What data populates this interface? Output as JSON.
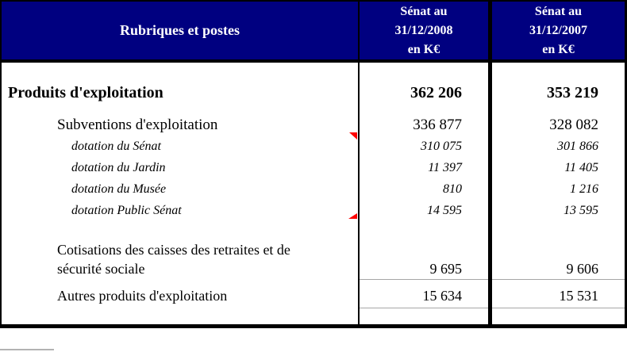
{
  "colors": {
    "header_bg": "#000080",
    "header_text": "#ffffff",
    "border_black": "#000000",
    "rule_gray": "#a6a6a6",
    "comment_marker_red": "#ff0000"
  },
  "header": {
    "rubriques": "Rubriques et postes",
    "col_2008": [
      "Sénat au",
      "31/12/2008",
      "en K€"
    ],
    "col_2007": [
      "Sénat au",
      "31/12/2007",
      "en K€"
    ]
  },
  "rows": {
    "produits": {
      "label": "Produits d'exploitation",
      "v2008": "362 206",
      "v2007": "353 219"
    },
    "subventions": {
      "label": "Subventions d'exploitation",
      "v2008": "336 877",
      "v2007": "328 082"
    },
    "dotations": [
      {
        "label": "dotation du Sénat",
        "v2008": "310 075",
        "v2007": "301 866"
      },
      {
        "label": "dotation du Jardin",
        "v2008": "11 397",
        "v2007": "11 405"
      },
      {
        "label": "dotation du Musée",
        "v2008": "810",
        "v2007": "1 216"
      },
      {
        "label": "dotation Public Sénat",
        "v2008": "14 595",
        "v2007": "13 595"
      }
    ],
    "cotisations": {
      "label_line1": "Cotisations des caisses des retraites et de",
      "label_line2": "sécurité sociale",
      "v2008": "9 695",
      "v2007": "9 606"
    },
    "autres": {
      "label": "Autres produits d'exploitation",
      "v2008": "15 634",
      "v2007": "15 531"
    }
  },
  "annotations": {
    "comment_markers": [
      "comment-marker-subventions",
      "comment-marker-cotisations"
    ]
  }
}
